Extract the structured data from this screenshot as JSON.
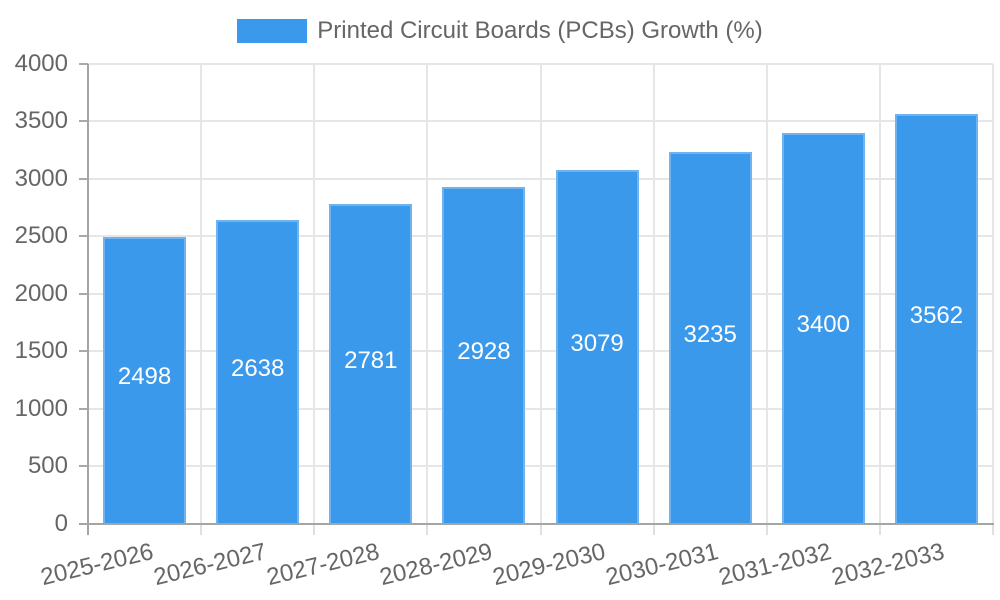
{
  "chart_data": {
    "type": "bar",
    "legend_label": "Printed Circuit Boards (PCBs) Growth (%)",
    "categories": [
      "2025-2026",
      "2026-2027",
      "2027-2028",
      "2028-2029",
      "2029-2030",
      "2030-2031",
      "2031-2032",
      "2032-2033"
    ],
    "values": [
      2498,
      2638,
      2781,
      2928,
      3079,
      3235,
      3400,
      3562
    ],
    "bar_labels": [
      "2498",
      "2638",
      "2781",
      "2928",
      "3079",
      "3235",
      "3400",
      "3562"
    ],
    "yticks": [
      0,
      500,
      1000,
      1500,
      2000,
      2500,
      3000,
      3500,
      4000
    ],
    "ylim": [
      0,
      4000
    ],
    "xlabel": "",
    "ylabel": "",
    "grid": true,
    "legend_position": "top",
    "bar_labels_inside": true
  },
  "colors": {
    "bar_fill": "#3b99ec",
    "bar_border": "#6fb3f1",
    "bar_label_text": "#ffffff",
    "axis_line": "#a5a5a5",
    "y_tick_mark": "#aaaaaa",
    "x_tick_mark": "#e0e0e0",
    "gridline": "#e6e6e6",
    "tick_text": "#666666",
    "legend_text": "#666666",
    "background": "#ffffff"
  }
}
